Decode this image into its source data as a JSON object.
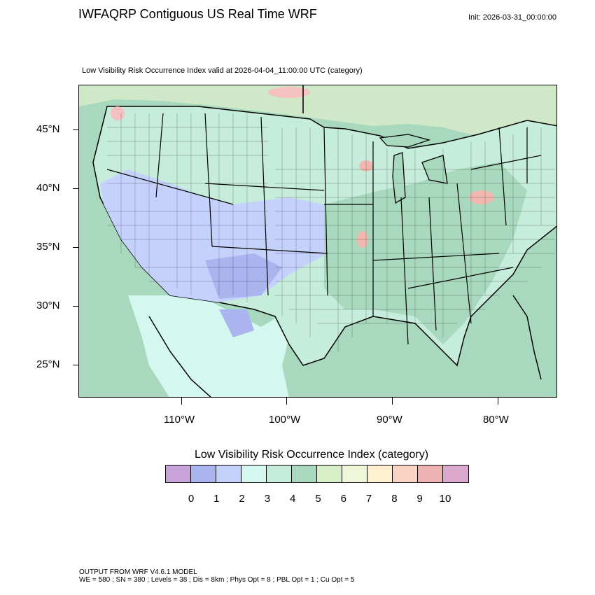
{
  "header": {
    "title": "IWFAQRP Contiguous US Real Time WRF",
    "init": "Init: 2026-03-31_00:00:00"
  },
  "map": {
    "subtitle": "Low Visibility Risk Occurrence Index valid at 2026-04-04_11:00:00 UTC   (category)",
    "lat_labels": [
      "45°N",
      "40°N",
      "35°N",
      "30°N",
      "25°N"
    ],
    "lon_labels": [
      "110°W",
      "100°W",
      "90°W",
      "80°W"
    ]
  },
  "legend": {
    "title": "Low Visibility Risk Occurrence Index  (category)",
    "labels": [
      "0",
      "1",
      "2",
      "3",
      "4",
      "5",
      "6",
      "7",
      "8",
      "9",
      "10"
    ],
    "colors": [
      "#c8a2d8",
      "#aab4ee",
      "#c4d2fb",
      "#d4f8f0",
      "#c6ecdc",
      "#a8d8bd",
      "#d6efc6",
      "#eef8d8",
      "#fff0d0",
      "#fbd3c2",
      "#eeb2b2",
      "#dba9cd"
    ]
  },
  "footer": {
    "line1": "OUTPUT FROM WRF V4.6.1 MODEL",
    "line2": "WE = 580 ; SN = 380 ; Levels = 38 ; Dis = 8km ; Phys Opt = 8 ; PBL Opt = 1 ; Cu Opt = 5"
  }
}
